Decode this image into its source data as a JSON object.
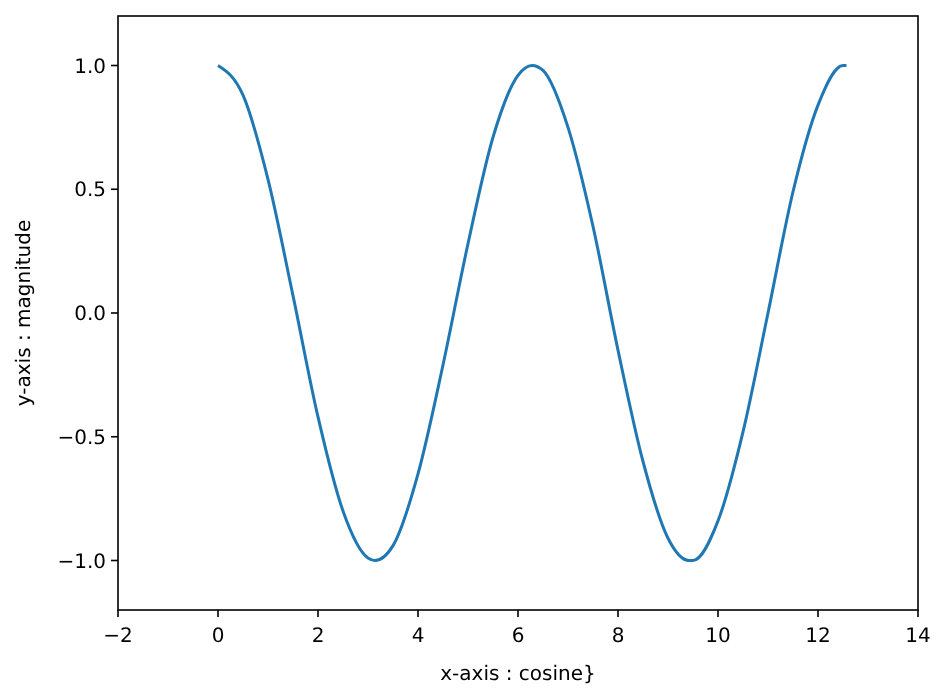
{
  "chart_data": {
    "type": "line",
    "xlabel": "x-axis : cosine}",
    "ylabel": "y-axis : magnitude",
    "x": [
      0,
      0.5,
      1,
      1.5,
      2,
      2.5,
      3,
      3.14,
      3.5,
      4,
      4.5,
      5,
      5.5,
      6,
      6.28,
      6.5,
      7,
      7.5,
      8,
      8.5,
      9,
      9.42,
      9.5,
      10,
      10.5,
      11,
      11.5,
      12,
      12.5,
      12.57
    ],
    "series": [
      {
        "color": "#1f77b4",
        "values": [
          1.0,
          0.88,
          0.54,
          0.07,
          -0.42,
          -0.8,
          -0.99,
          -1.0,
          -0.94,
          -0.65,
          -0.21,
          0.28,
          0.71,
          0.96,
          1.0,
          0.98,
          0.75,
          0.35,
          -0.15,
          -0.6,
          -0.91,
          -1.0,
          -1.0,
          -0.84,
          -0.48,
          0.0,
          0.49,
          0.84,
          1.0,
          1.0
        ]
      }
    ],
    "xlim": [
      -2,
      14
    ],
    "xticks": [
      {
        "value": -2,
        "label": "−2"
      },
      0,
      2,
      4,
      6,
      8,
      10,
      12,
      14
    ],
    "ylim": [
      -1.2,
      1.2
    ],
    "yticks": [
      {
        "value": -1,
        "label": "−1.0"
      },
      {
        "value": -0.5,
        "label": "−0.5"
      },
      {
        "value": 0,
        "label": "0.0"
      },
      {
        "value": 0.5,
        "label": "0.5"
      },
      {
        "value": 1,
        "label": "1.0"
      }
    ],
    "grid": false,
    "marker": "none",
    "line_style": "solid"
  }
}
